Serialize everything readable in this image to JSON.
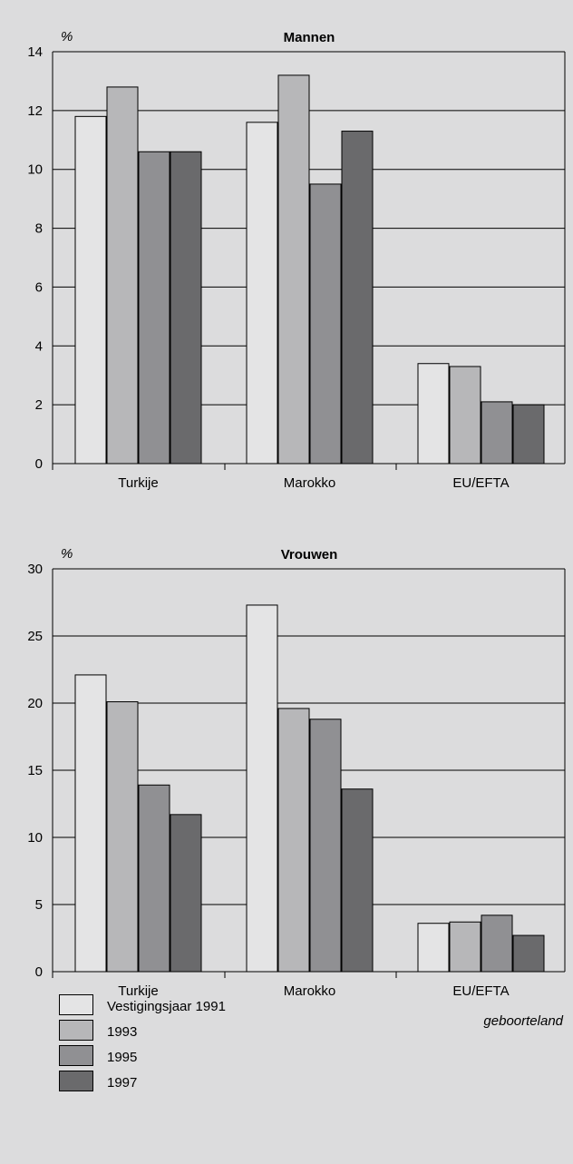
{
  "chart_data": [
    {
      "type": "bar",
      "title": "Mannen",
      "ylabel": "%",
      "xlabel": "",
      "ylim": [
        0,
        14
      ],
      "yticks": [
        0,
        2,
        4,
        6,
        8,
        10,
        12,
        14
      ],
      "categories": [
        "Turkije",
        "Marokko",
        "EU/EFTA"
      ],
      "series": [
        {
          "name": "Vestigingsjaar 1991",
          "color": "#e4e4e5",
          "values": [
            11.8,
            11.6,
            3.4
          ]
        },
        {
          "name": "1993",
          "color": "#b7b7b9",
          "values": [
            12.8,
            13.2,
            3.3
          ]
        },
        {
          "name": "1995",
          "color": "#909093",
          "values": [
            10.6,
            9.5,
            2.1
          ]
        },
        {
          "name": "1997",
          "color": "#6a6a6c",
          "values": [
            10.6,
            11.3,
            2.0
          ]
        }
      ],
      "grid": true
    },
    {
      "type": "bar",
      "title": "Vrouwen",
      "ylabel": "%",
      "xlabel": "geboorteland",
      "ylim": [
        0,
        30
      ],
      "yticks": [
        0,
        5,
        10,
        15,
        20,
        25,
        30
      ],
      "categories": [
        "Turkije",
        "Marokko",
        "EU/EFTA"
      ],
      "series": [
        {
          "name": "Vestigingsjaar 1991",
          "color": "#e4e4e5",
          "values": [
            22.1,
            27.3,
            3.6
          ]
        },
        {
          "name": "1993",
          "color": "#b7b7b9",
          "values": [
            20.1,
            19.6,
            3.7
          ]
        },
        {
          "name": "1995",
          "color": "#909093",
          "values": [
            13.9,
            18.8,
            4.2
          ]
        },
        {
          "name": "1997",
          "color": "#6a6a6c",
          "values": [
            11.7,
            13.6,
            2.7
          ]
        }
      ],
      "grid": true
    }
  ],
  "legend": {
    "placement": "bottom-left",
    "items": [
      {
        "label": "Vestigingsjaar 1991",
        "color": "#e4e4e5"
      },
      {
        "label": "1993",
        "color": "#b7b7b9"
      },
      {
        "label": "1995",
        "color": "#909093"
      },
      {
        "label": "1997",
        "color": "#6a6a6c"
      }
    ]
  }
}
